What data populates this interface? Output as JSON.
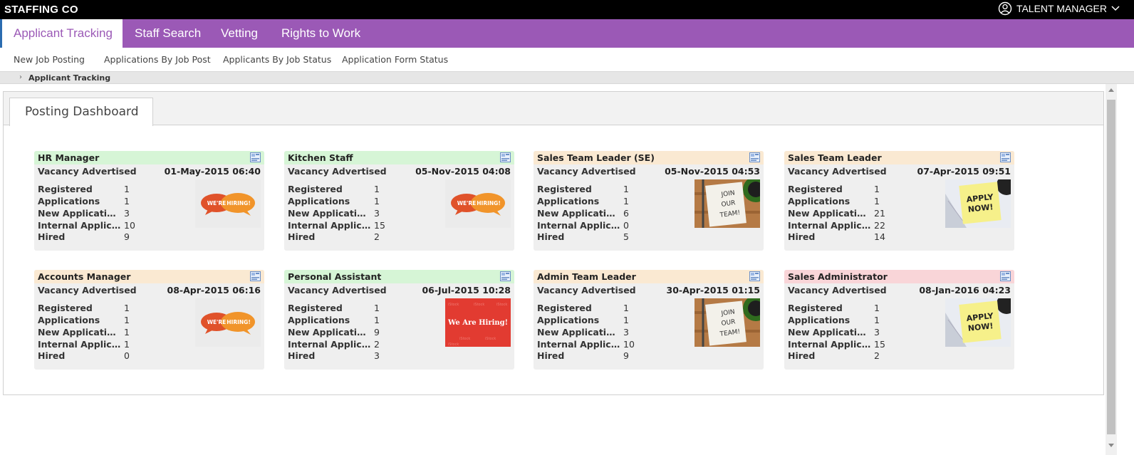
{
  "app": {
    "brand": "STAFFING CO",
    "user_label": "TALENT MANAGER"
  },
  "main_nav": [
    {
      "label": "Applicant Tracking",
      "active": true
    },
    {
      "label": "Staff Search",
      "active": false
    },
    {
      "label": "Vetting",
      "active": false
    },
    {
      "label": "Rights to Work",
      "active": false
    }
  ],
  "sub_nav": [
    {
      "label": "New Job Posting"
    },
    {
      "label": "Applications By Job Post"
    },
    {
      "label": "Applicants By Job Status"
    },
    {
      "label": "Application Form Status"
    }
  ],
  "breadcrumb": {
    "label": "Applicant Tracking"
  },
  "dashboard_tab": "Posting Dashboard",
  "stat_labels": [
    "Registered",
    "Applications",
    "New Applications",
    "Internal Applications",
    "Hired"
  ],
  "postings": [
    {
      "title": "HR Manager",
      "status": "Vacancy Advertised",
      "date": "01-May-2015 06:40",
      "color": "#d6f5d6",
      "stats": [
        "1",
        "1",
        "3",
        "10",
        "9"
      ],
      "image": "were-hiring-bubbles",
      "image_text": [
        "WE'RE",
        "HIRING!"
      ]
    },
    {
      "title": "Kitchen Staff",
      "status": "Vacancy Advertised",
      "date": "05-Nov-2015 04:08",
      "color": "#d6f5d6",
      "stats": [
        "1",
        "1",
        "3",
        "15",
        "2"
      ],
      "image": "were-hiring-bubbles",
      "image_text": [
        "WE'RE",
        "HIRING!"
      ]
    },
    {
      "title": "Sales Team Leader (SE)",
      "status": "Vacancy Advertised",
      "date": "05-Nov-2015 04:53",
      "color": "#fae9d2",
      "stats": [
        "1",
        "1",
        "6",
        "0",
        "5"
      ],
      "image": "join-our-team-note",
      "image_text": [
        "JOIN",
        "OUR",
        "TEAM!"
      ]
    },
    {
      "title": "Sales Team Leader",
      "status": "Vacancy Advertised",
      "date": "07-Apr-2015 09:51",
      "color": "#fae9d2",
      "stats": [
        "1",
        "1",
        "21",
        "22",
        "14"
      ],
      "image": "apply-now-sticky",
      "image_text": [
        "APPLY",
        "NOW!"
      ]
    },
    {
      "title": "Accounts Manager",
      "status": "Vacancy Advertised",
      "date": "08-Apr-2015 06:16",
      "color": "#fae9d2",
      "stats": [
        "1",
        "1",
        "1",
        "1",
        "0"
      ],
      "image": "were-hiring-bubbles",
      "image_text": [
        "WE'RE",
        "HIRING!"
      ]
    },
    {
      "title": "Personal Assistant",
      "status": "Vacancy Advertised",
      "date": "06-Jul-2015 10:28",
      "color": "#d6f5d6",
      "stats": [
        "1",
        "1",
        "9",
        "2",
        "3"
      ],
      "image": "we-are-hiring-banner",
      "image_text": [
        "We Are Hiring!"
      ]
    },
    {
      "title": "Admin Team Leader",
      "status": "Vacancy Advertised",
      "date": "30-Apr-2015 01:15",
      "color": "#fae9d2",
      "stats": [
        "1",
        "1",
        "3",
        "10",
        "9"
      ],
      "image": "join-our-team-note",
      "image_text": [
        "JOIN",
        "OUR",
        "TEAM!"
      ]
    },
    {
      "title": "Sales Administrator",
      "status": "Vacancy Advertised",
      "date": "08-Jan-2016 04:23",
      "color": "#f9d5d8",
      "stats": [
        "1",
        "1",
        "3",
        "15",
        "2"
      ],
      "image": "apply-now-sticky",
      "image_text": [
        "APPLY",
        "NOW!"
      ]
    }
  ]
}
